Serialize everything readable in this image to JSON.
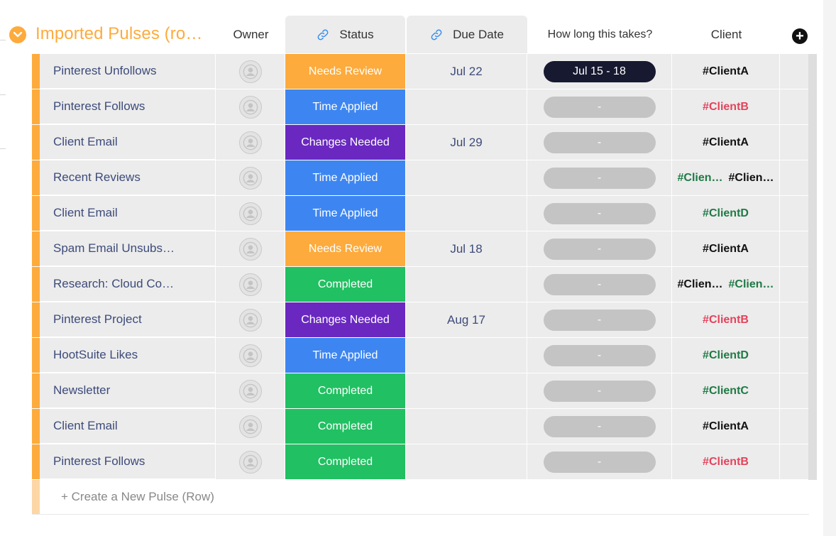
{
  "group": {
    "title": "Imported Pulses (ro…",
    "accent_color": "#fdab3d",
    "toggle_icon": "chevron-down-icon"
  },
  "columns": {
    "owner": "Owner",
    "status": "Status",
    "due_date": "Due Date",
    "time": "How long this takes?",
    "client": "Client",
    "link_icon": "link-icon",
    "add_icon": "plus-circle-icon"
  },
  "status_colors": {
    "Needs Review": "#fdab3d",
    "Time Applied": "#3d86f2",
    "Changes Needed": "#6a28c1",
    "Completed": "#21c062"
  },
  "client_colors": {
    "#ClientA": "#111111",
    "#ClientB": "#e2445c",
    "#ClientC": "#1f7a45",
    "#ClientD": "#1f7a45",
    "#Clien…": "#111111"
  },
  "rows": [
    {
      "name": "Pinterest Unfollows",
      "status": "Needs Review",
      "due": "Jul 22",
      "time": "Jul 15 - 18",
      "time_active": true,
      "clients": [
        {
          "label": "#ClientA",
          "color": "#111111"
        }
      ]
    },
    {
      "name": "Pinterest Follows",
      "status": "Time Applied",
      "due": "",
      "time": "-",
      "time_active": false,
      "clients": [
        {
          "label": "#ClientB",
          "color": "#e2445c"
        }
      ]
    },
    {
      "name": "Client Email",
      "status": "Changes Needed",
      "due": "Jul 29",
      "time": "-",
      "time_active": false,
      "clients": [
        {
          "label": "#ClientA",
          "color": "#111111"
        }
      ]
    },
    {
      "name": "Recent Reviews",
      "status": "Time Applied",
      "due": "",
      "time": "-",
      "time_active": false,
      "clients": [
        {
          "label": "#Clien…",
          "color": "#1f7a45"
        },
        {
          "label": "#Clien…",
          "color": "#111111"
        }
      ]
    },
    {
      "name": "Client Email",
      "status": "Time Applied",
      "due": "",
      "time": "-",
      "time_active": false,
      "clients": [
        {
          "label": "#ClientD",
          "color": "#1f7a45"
        }
      ]
    },
    {
      "name": "Spam Email Unsubs…",
      "status": "Needs Review",
      "due": "Jul 18",
      "time": "-",
      "time_active": false,
      "clients": [
        {
          "label": "#ClientA",
          "color": "#111111"
        }
      ]
    },
    {
      "name": "Research: Cloud Co…",
      "status": "Completed",
      "due": "",
      "time": "-",
      "time_active": false,
      "clients": [
        {
          "label": "#Clien…",
          "color": "#111111"
        },
        {
          "label": "#Clien…",
          "color": "#1f7a45"
        }
      ]
    },
    {
      "name": "Pinterest Project",
      "status": "Changes Needed",
      "due": "Aug 17",
      "time": "-",
      "time_active": false,
      "clients": [
        {
          "label": "#ClientB",
          "color": "#e2445c"
        }
      ]
    },
    {
      "name": "HootSuite Likes",
      "status": "Time Applied",
      "due": "",
      "time": "-",
      "time_active": false,
      "clients": [
        {
          "label": "#ClientD",
          "color": "#1f7a45"
        }
      ]
    },
    {
      "name": "Newsletter",
      "status": "Completed",
      "due": "",
      "time": "-",
      "time_active": false,
      "clients": [
        {
          "label": "#ClientC",
          "color": "#1f7a45"
        }
      ]
    },
    {
      "name": "Client Email",
      "status": "Completed",
      "due": "",
      "time": "-",
      "time_active": false,
      "clients": [
        {
          "label": "#ClientA",
          "color": "#111111"
        }
      ]
    },
    {
      "name": "Pinterest Follows",
      "status": "Completed",
      "due": "",
      "time": "-",
      "time_active": false,
      "clients": [
        {
          "label": "#ClientB",
          "color": "#e2445c"
        }
      ]
    }
  ],
  "create_row": {
    "label": "+ Create a New Pulse (Row)"
  }
}
